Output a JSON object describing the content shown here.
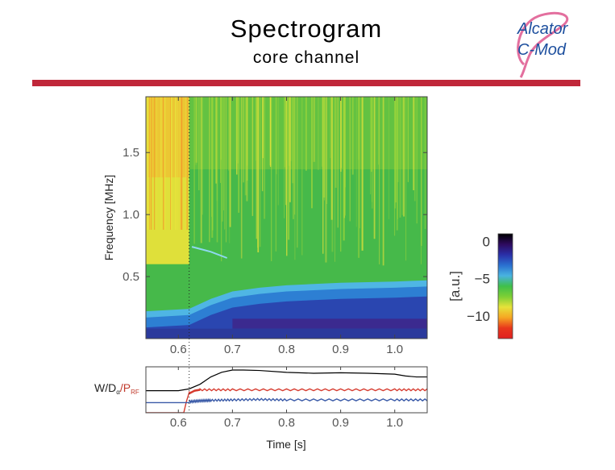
{
  "header": {
    "title": "Spectrogram",
    "subtitle": "core channel",
    "rule_color": "#c0273a"
  },
  "logo": {
    "line1": "Alcator",
    "line2": "C-Mod",
    "text_color": "#1d4f9e",
    "ribbon_color": "#e36f9e"
  },
  "chart_data": [
    {
      "type": "heatmap",
      "title": "",
      "xlabel": "",
      "ylabel": "Frequency [MHz]",
      "xlim": [
        0.54,
        1.06
      ],
      "ylim": [
        0.0,
        1.95
      ],
      "x_ticks": [
        0.6,
        0.7,
        0.8,
        0.9,
        1.0
      ],
      "x_tick_labels": [
        "0.6",
        "0.7",
        "0.8",
        "0.9",
        "1.0"
      ],
      "y_ticks": [
        0.5,
        1.0,
        1.5
      ],
      "y_tick_labels": [
        "0.5",
        "1.0",
        "1.5"
      ],
      "marker_time": 0.62,
      "colorbar": {
        "label": "[a.u.]",
        "range": [
          -13,
          1
        ],
        "ticks": [
          0,
          -5,
          -10
        ],
        "tick_labels": [
          "0",
          "−5",
          "−10"
        ],
        "colors": [
          "#000000",
          "#2e0a5e",
          "#2a2fa8",
          "#2a6fd0",
          "#49b3e0",
          "#3fbf4a",
          "#7dcf35",
          "#e6e23a",
          "#f6a623",
          "#e8361c",
          "#e02020"
        ]
      },
      "features": {
        "background_level": -7,
        "low_freq_band_edge": [
          [
            0.54,
            0.22
          ],
          [
            0.62,
            0.24
          ],
          [
            0.66,
            0.32
          ],
          [
            0.7,
            0.38
          ],
          [
            0.75,
            0.41
          ],
          [
            0.8,
            0.43
          ],
          [
            0.9,
            0.45
          ],
          [
            1.0,
            0.46
          ],
          [
            1.06,
            0.47
          ]
        ],
        "mode_trace": [
          [
            0.625,
            0.74
          ],
          [
            0.66,
            0.7
          ],
          [
            0.69,
            0.65
          ]
        ],
        "high_freq_yellow_region": [
          0.54,
          0.62
        ]
      }
    },
    {
      "type": "line",
      "title": "",
      "xlabel": "Time [s]",
      "ylabel": "W/D_α/P_RF",
      "ylabel_parts": {
        "w": "W/D",
        "sub1": "α",
        "slash": "/P",
        "sub2": "RF"
      },
      "xlim": [
        0.54,
        1.06
      ],
      "ylim": [
        0,
        1
      ],
      "x_ticks": [
        0.6,
        0.7,
        0.8,
        0.9,
        1.0
      ],
      "x_tick_labels": [
        "0.6",
        "0.7",
        "0.8",
        "0.9",
        "1.0"
      ],
      "marker_time": 0.62,
      "series": [
        {
          "color": "#000000",
          "x": [
            0.54,
            0.6,
            0.62,
            0.64,
            0.66,
            0.68,
            0.7,
            0.72,
            0.75,
            0.8,
            0.85,
            0.9,
            0.95,
            1.0,
            1.02,
            1.04,
            1.06
          ],
          "y": [
            0.48,
            0.48,
            0.52,
            0.62,
            0.78,
            0.88,
            0.93,
            0.93,
            0.92,
            0.88,
            0.86,
            0.87,
            0.86,
            0.84,
            0.8,
            0.78,
            0.78
          ]
        },
        {
          "color": "#d63a2e",
          "x": [
            0.54,
            0.61,
            0.615,
            0.62,
            0.63,
            0.64,
            0.7,
            0.8,
            0.9,
            1.0,
            1.06
          ],
          "y": [
            0.0,
            0.0,
            0.25,
            0.42,
            0.48,
            0.5,
            0.5,
            0.5,
            0.5,
            0.5,
            0.5
          ]
        },
        {
          "color": "#3b5ba8",
          "x": [
            0.54,
            0.6,
            0.62,
            0.64,
            0.66,
            0.7,
            0.75,
            0.8,
            0.9,
            1.0,
            1.06
          ],
          "y": [
            0.22,
            0.22,
            0.24,
            0.26,
            0.27,
            0.28,
            0.29,
            0.28,
            0.28,
            0.28,
            0.28
          ]
        }
      ]
    }
  ]
}
